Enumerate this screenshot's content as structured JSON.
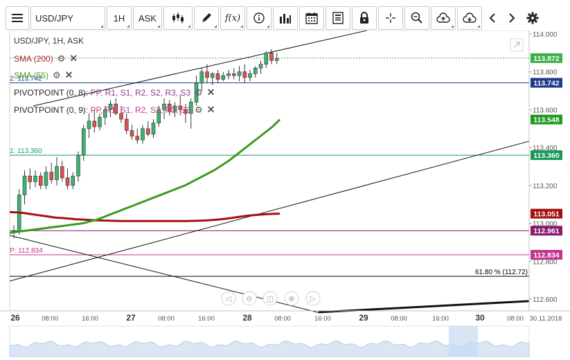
{
  "toolbar": {
    "symbol": "USD/JPY",
    "timeframe": "1H",
    "price_type": "ASK"
  },
  "header": {
    "instrument_label": "USD/JPY, 1H, ASK"
  },
  "indicators": {
    "sma200": {
      "label": "SMA (200)",
      "color": "#b22222"
    },
    "sma55": {
      "label": "SMA (55)",
      "color": "#3a9a1e"
    },
    "pivot1": {
      "label_prefix": "PIVOTPOINT (0, 8)",
      "levels_text": ": PP, R1, S1, R2, S2, R3, S3"
    },
    "pivot2": {
      "label_prefix": "PIVOTPOINT (0, 9)",
      "levels_text": ": PP, R1, S1, R2, S2, R3, S3"
    }
  },
  "chart_data": {
    "type": "candlestick",
    "y_range": [
      112.5,
      114.05
    ],
    "y_ticks": [
      "114.000",
      "113.800",
      "113.600",
      "113.400",
      "113.200",
      "113.000",
      "112.800",
      "112.600"
    ],
    "x_ticks": [
      "26",
      "08:00",
      "16:00",
      "27",
      "08:00",
      "16:00",
      "28",
      "08:00",
      "16:00",
      "29",
      "08:00",
      "16:00",
      "30",
      "08:00",
      "30.11.2018"
    ],
    "bold_x_ticks": [
      "26",
      "27",
      "28",
      "29",
      "30"
    ],
    "candles": [
      [
        112.95,
        112.99,
        112.92,
        112.96
      ],
      [
        112.96,
        113.18,
        112.94,
        113.15
      ],
      [
        113.15,
        113.28,
        113.1,
        113.25
      ],
      [
        113.25,
        113.29,
        113.18,
        113.22
      ],
      [
        113.22,
        113.28,
        113.19,
        113.25
      ],
      [
        113.25,
        113.27,
        113.18,
        113.2
      ],
      [
        113.2,
        113.3,
        113.18,
        113.27
      ],
      [
        113.27,
        113.32,
        113.21,
        113.23
      ],
      [
        113.23,
        113.35,
        113.2,
        113.3
      ],
      [
        113.3,
        113.33,
        113.22,
        113.24
      ],
      [
        113.24,
        113.29,
        113.18,
        113.2
      ],
      [
        113.2,
        113.27,
        113.18,
        113.25
      ],
      [
        113.25,
        113.38,
        113.22,
        113.36
      ],
      [
        113.36,
        113.52,
        113.33,
        113.5
      ],
      [
        113.5,
        113.58,
        113.45,
        113.54
      ],
      [
        113.54,
        113.6,
        113.48,
        113.51
      ],
      [
        113.51,
        113.58,
        113.49,
        113.56
      ],
      [
        113.56,
        113.62,
        113.52,
        113.6
      ],
      [
        113.6,
        113.65,
        113.56,
        113.63
      ],
      [
        113.63,
        113.66,
        113.57,
        113.58
      ],
      [
        113.58,
        113.62,
        113.53,
        113.55
      ],
      [
        113.55,
        113.58,
        113.47,
        113.49
      ],
      [
        113.49,
        113.52,
        113.44,
        113.46
      ],
      [
        113.46,
        113.5,
        113.42,
        113.44
      ],
      [
        113.44,
        113.52,
        113.42,
        113.5
      ],
      [
        113.5,
        113.54,
        113.46,
        113.47
      ],
      [
        113.47,
        113.55,
        113.45,
        113.53
      ],
      [
        113.53,
        113.62,
        113.51,
        113.6
      ],
      [
        113.6,
        113.66,
        113.55,
        113.63
      ],
      [
        113.63,
        113.65,
        113.57,
        113.59
      ],
      [
        113.59,
        113.64,
        113.56,
        113.62
      ],
      [
        113.62,
        113.68,
        113.57,
        113.6
      ],
      [
        113.6,
        113.63,
        113.53,
        113.58
      ],
      [
        113.58,
        113.66,
        113.5,
        113.64
      ],
      [
        113.64,
        113.78,
        113.62,
        113.74
      ],
      [
        113.74,
        113.82,
        113.7,
        113.8
      ],
      [
        113.8,
        113.84,
        113.74,
        113.77
      ],
      [
        113.77,
        113.8,
        113.73,
        113.79
      ],
      [
        113.79,
        113.81,
        113.74,
        113.76
      ],
      [
        113.76,
        113.8,
        113.75,
        113.78
      ],
      [
        113.78,
        113.81,
        113.76,
        113.79
      ],
      [
        113.79,
        113.82,
        113.76,
        113.78
      ],
      [
        113.78,
        113.83,
        113.75,
        113.8
      ],
      [
        113.8,
        113.84,
        113.74,
        113.77
      ],
      [
        113.77,
        113.81,
        113.75,
        113.79
      ],
      [
        113.79,
        113.83,
        113.77,
        113.82
      ],
      [
        113.82,
        113.86,
        113.79,
        113.84
      ],
      [
        113.84,
        113.91,
        113.82,
        113.9
      ],
      [
        113.9,
        113.92,
        113.84,
        113.86
      ],
      [
        113.86,
        113.9,
        113.84,
        113.87
      ]
    ],
    "sma200": [
      113.06,
      113.058,
      113.055,
      113.05,
      113.045,
      113.04,
      113.035,
      113.03,
      113.028,
      113.025,
      113.022,
      113.02,
      113.018,
      113.016,
      113.015,
      113.014,
      113.013,
      113.012,
      113.012,
      113.012,
      113.012,
      113.012,
      113.012,
      113.012,
      113.012,
      113.012,
      113.012,
      113.012,
      113.013,
      113.014,
      113.016,
      113.018,
      113.021,
      113.025,
      113.03,
      113.035,
      113.04,
      113.043,
      113.046,
      113.048,
      113.05,
      113.051
    ],
    "sma55": [
      112.95,
      112.955,
      112.96,
      112.965,
      112.97,
      112.975,
      112.98,
      112.985,
      112.99,
      112.995,
      113.0,
      113.01,
      113.02,
      113.035,
      113.05,
      113.065,
      113.08,
      113.095,
      113.11,
      113.125,
      113.14,
      113.155,
      113.17,
      113.185,
      113.2,
      113.22,
      113.24,
      113.26,
      113.28,
      113.305,
      113.33,
      113.36,
      113.39,
      113.42,
      113.45,
      113.48,
      113.51,
      113.548
    ],
    "horizontal_levels": [
      {
        "label": "2: 113.742",
        "value": 113.742,
        "color": "#1f3a8a",
        "tag": "113.742"
      },
      {
        "label": "1: 113.360",
        "value": 113.36,
        "color": "#1a9a5a",
        "tag": "113.360"
      },
      {
        "label": "",
        "value": 112.961,
        "color": "#8b1a6e",
        "tag": "112.961"
      },
      {
        "label": "P: 112.834",
        "value": 112.834,
        "color": "#c2358f",
        "tag": "112.834"
      },
      {
        "label": "61.80 % (112.72)",
        "value": 112.72,
        "color": "#000000",
        "tag": ""
      }
    ],
    "price_tags": [
      {
        "value": 113.872,
        "text": "113.872",
        "color": "#3fae4a"
      },
      {
        "value": 113.548,
        "text": "113.548",
        "color": "#1f9a1f"
      },
      {
        "value": 113.051,
        "text": "113.051",
        "color": "#a50f0f"
      }
    ],
    "current_price": 113.872
  },
  "nav_buttons": [
    "rewind",
    "zoom-out",
    "reset",
    "zoom-in",
    "forward"
  ]
}
